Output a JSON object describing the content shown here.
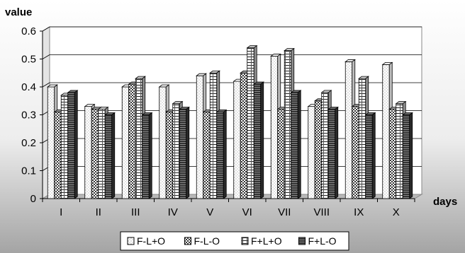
{
  "chart_data": {
    "type": "bar",
    "ylabel": "value",
    "xlabel": "days",
    "categories": [
      "I",
      "II",
      "III",
      "IV",
      "V",
      "VI",
      "VII",
      "VIII",
      "IX",
      "X"
    ],
    "ylim": [
      0,
      0.6
    ],
    "yticks": [
      "0",
      "0.1",
      "0.2",
      "0.3",
      "0.4",
      "0.5",
      "0.6"
    ],
    "grid": true,
    "legend_position": "bottom",
    "series": [
      {
        "name": "F-L+O",
        "values": [
          0.4,
          0.33,
          0.4,
          0.4,
          0.44,
          0.42,
          0.51,
          0.33,
          0.49,
          0.48
        ]
      },
      {
        "name": "F-L-O",
        "values": [
          0.31,
          0.32,
          0.41,
          0.31,
          0.31,
          0.45,
          0.32,
          0.35,
          0.33,
          0.32
        ]
      },
      {
        "name": "F+L+O",
        "values": [
          0.37,
          0.32,
          0.43,
          0.34,
          0.45,
          0.54,
          0.53,
          0.38,
          0.43,
          0.34
        ]
      },
      {
        "name": "F+L-O",
        "values": [
          0.38,
          0.3,
          0.3,
          0.32,
          0.31,
          0.41,
          0.38,
          0.32,
          0.3,
          0.3
        ]
      }
    ],
    "colors": {
      "background_top": "#ffffff",
      "background_bottom": "#9a9a9a",
      "plot_wall": "#ffffff",
      "floor": "#b8b8b8",
      "grid": "#000000",
      "bar_outline": "#000000"
    }
  }
}
